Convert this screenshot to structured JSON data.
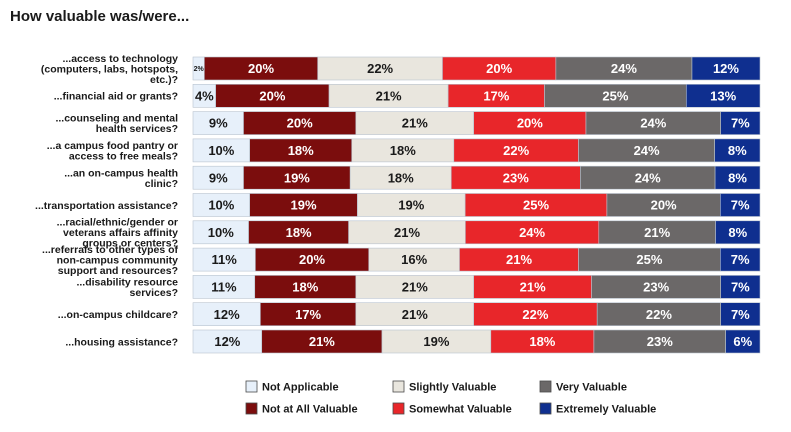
{
  "chart_data": {
    "type": "bar",
    "orientation": "horizontal",
    "stacked": true,
    "normalized": true,
    "title": "How valuable was/were...",
    "categories": [
      [
        "...access to technology",
        "(computers, labs, hotspots,",
        "etc.)?"
      ],
      [
        "...financial aid or grants?"
      ],
      [
        "...counseling and mental",
        "health services?"
      ],
      [
        "...a campus food pantry or",
        "access to free meals?"
      ],
      [
        "...an on-campus health",
        "clinic?"
      ],
      [
        "...transportation assistance?"
      ],
      [
        "...racial/ethnic/gender or",
        "veterans affairs affinity",
        "groups or centers?"
      ],
      [
        "...referrals to other types of",
        "non-campus community",
        "support and resources?"
      ],
      [
        "...disability resource",
        "services?"
      ],
      [
        "...on-campus childcare?"
      ],
      [
        "...housing assistance?"
      ]
    ],
    "series": [
      {
        "name": "Not Applicable",
        "color": "#e7f0fa",
        "text_color": "#1a1a1a",
        "values": [
          2,
          4,
          9,
          10,
          9,
          10,
          10,
          11,
          11,
          12,
          12
        ],
        "labels": [
          "2%",
          "4%",
          "9%",
          "10%",
          "9%",
          "10%",
          "10%",
          "11%",
          "11%",
          "12%",
          "12%"
        ]
      },
      {
        "name": "Not at All Valuable",
        "color": "#7b0d0d",
        "text_color": "#ffffff",
        "values": [
          20,
          20,
          20,
          18,
          19,
          19,
          18,
          20,
          18,
          17,
          21
        ],
        "labels": [
          "20%",
          "20%",
          "20%",
          "18%",
          "19%",
          "19%",
          "18%",
          "20%",
          "18%",
          "17%",
          "21%"
        ]
      },
      {
        "name": "Slightly Valuable",
        "color": "#e9e6de",
        "text_color": "#1a1a1a",
        "values": [
          22,
          21,
          21,
          18,
          18,
          19,
          21,
          16,
          21,
          21,
          19
        ],
        "labels": [
          "22%",
          "21%",
          "21%",
          "18%",
          "18%",
          "19%",
          "21%",
          "16%",
          "21%",
          "21%",
          "19%"
        ]
      },
      {
        "name": "Somewhat Valuable",
        "color": "#e8262a",
        "text_color": "#ffffff",
        "values": [
          20,
          17,
          20,
          22,
          23,
          25,
          24,
          21,
          21,
          22,
          18
        ],
        "labels": [
          "20%",
          "17%",
          "20%",
          "22%",
          "23%",
          "25%",
          "24%",
          "21%",
          "21%",
          "22%",
          "18%"
        ]
      },
      {
        "name": "Very Valuable",
        "color": "#6b6868",
        "text_color": "#ffffff",
        "values": [
          24,
          25,
          24,
          24,
          24,
          20,
          21,
          25,
          23,
          22,
          23
        ],
        "labels": [
          "24%",
          "25%",
          "24%",
          "24%",
          "24%",
          "20%",
          "21%",
          "25%",
          "23%",
          "22%",
          "23%"
        ]
      },
      {
        "name": "Extremely Valuable",
        "color": "#0f2f8f",
        "text_color": "#ffffff",
        "values": [
          12,
          13,
          7,
          8,
          8,
          7,
          8,
          7,
          7,
          7,
          6
        ],
        "labels": [
          "12%",
          "13%",
          "7%",
          "8%",
          "8%",
          "7%",
          "8%",
          "7%",
          "7%",
          "7%",
          "6%"
        ]
      }
    ],
    "legend": {
      "position": "bottom",
      "order": [
        "Not Applicable",
        "Slightly Valuable",
        "Very Valuable",
        "Not at All Valuable",
        "Somewhat Valuable",
        "Extremely Valuable"
      ]
    },
    "xlabel": "",
    "ylabel": "",
    "grid": false
  }
}
